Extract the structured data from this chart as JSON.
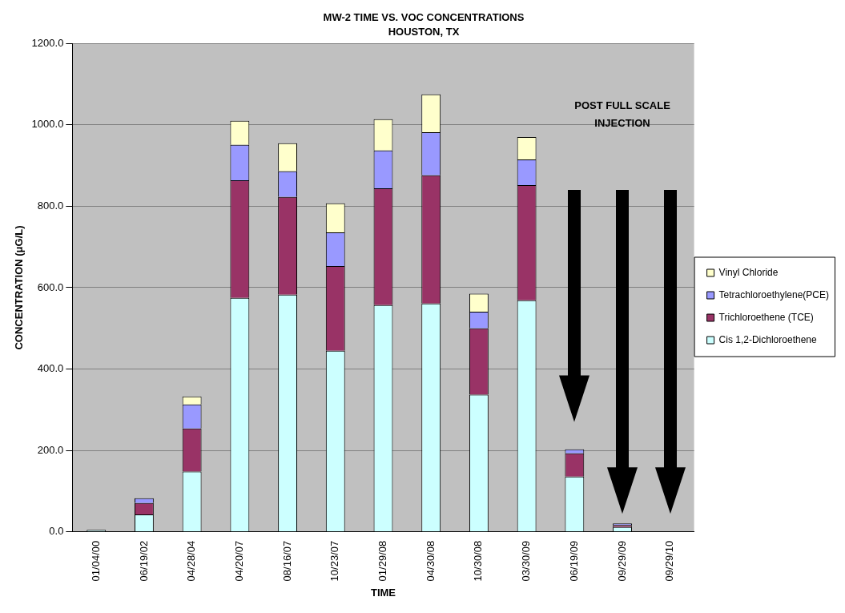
{
  "chart_data": {
    "type": "bar",
    "title": "MW-2 TIME VS. VOC CONCENTRATIONS",
    "subtitle": "HOUSTON, TX",
    "xlabel": "TIME",
    "ylabel": "CONCENTRATION (μG/L)",
    "categories": [
      "01/04/00",
      "06/19/02",
      "04/28/04",
      "04/20/07",
      "08/16/07",
      "10/23/07",
      "01/29/08",
      "04/30/08",
      "10/30/08",
      "03/30/09",
      "06/19/09",
      "09/29/09",
      "09/29/10"
    ],
    "series": [
      {
        "name": "Cis 1,2-Dichloroethene",
        "color": "#ccffff",
        "values": [
          5,
          43,
          148,
          575,
          583,
          445,
          557,
          561,
          337,
          569,
          136,
          12,
          0
        ]
      },
      {
        "name": "Trichloroethene (TCE)",
        "color": "#993366",
        "values": [
          0,
          28,
          106,
          289,
          240,
          208,
          287,
          315,
          163,
          283,
          57,
          5,
          0
        ]
      },
      {
        "name": "Tetrachloroethylene(PCE)",
        "color": "#9999ff",
        "values": [
          0,
          12,
          59,
          87,
          63,
          83,
          93,
          106,
          41,
          63,
          10,
          4,
          0
        ]
      },
      {
        "name": "Vinyl Chloride",
        "color": "#ffffcc",
        "values": [
          0,
          0,
          20,
          59,
          69,
          71,
          77,
          93,
          44,
          55,
          0,
          0,
          0
        ]
      }
    ],
    "stacked": true,
    "ylim": [
      0,
      1200
    ],
    "yticks": [
      {
        "value": 0,
        "label": "0.0"
      },
      {
        "value": 200,
        "label": "200.0"
      },
      {
        "value": 400,
        "label": "400.0"
      },
      {
        "value": 600,
        "label": "600.0"
      },
      {
        "value": 800,
        "label": "800.0"
      },
      {
        "value": 1000,
        "label": "1000.0"
      },
      {
        "value": 1200,
        "label": "1200.0"
      }
    ],
    "grid": "y",
    "legend": "right",
    "annotations": [
      "POST FULL SCALE INJECTION"
    ]
  }
}
